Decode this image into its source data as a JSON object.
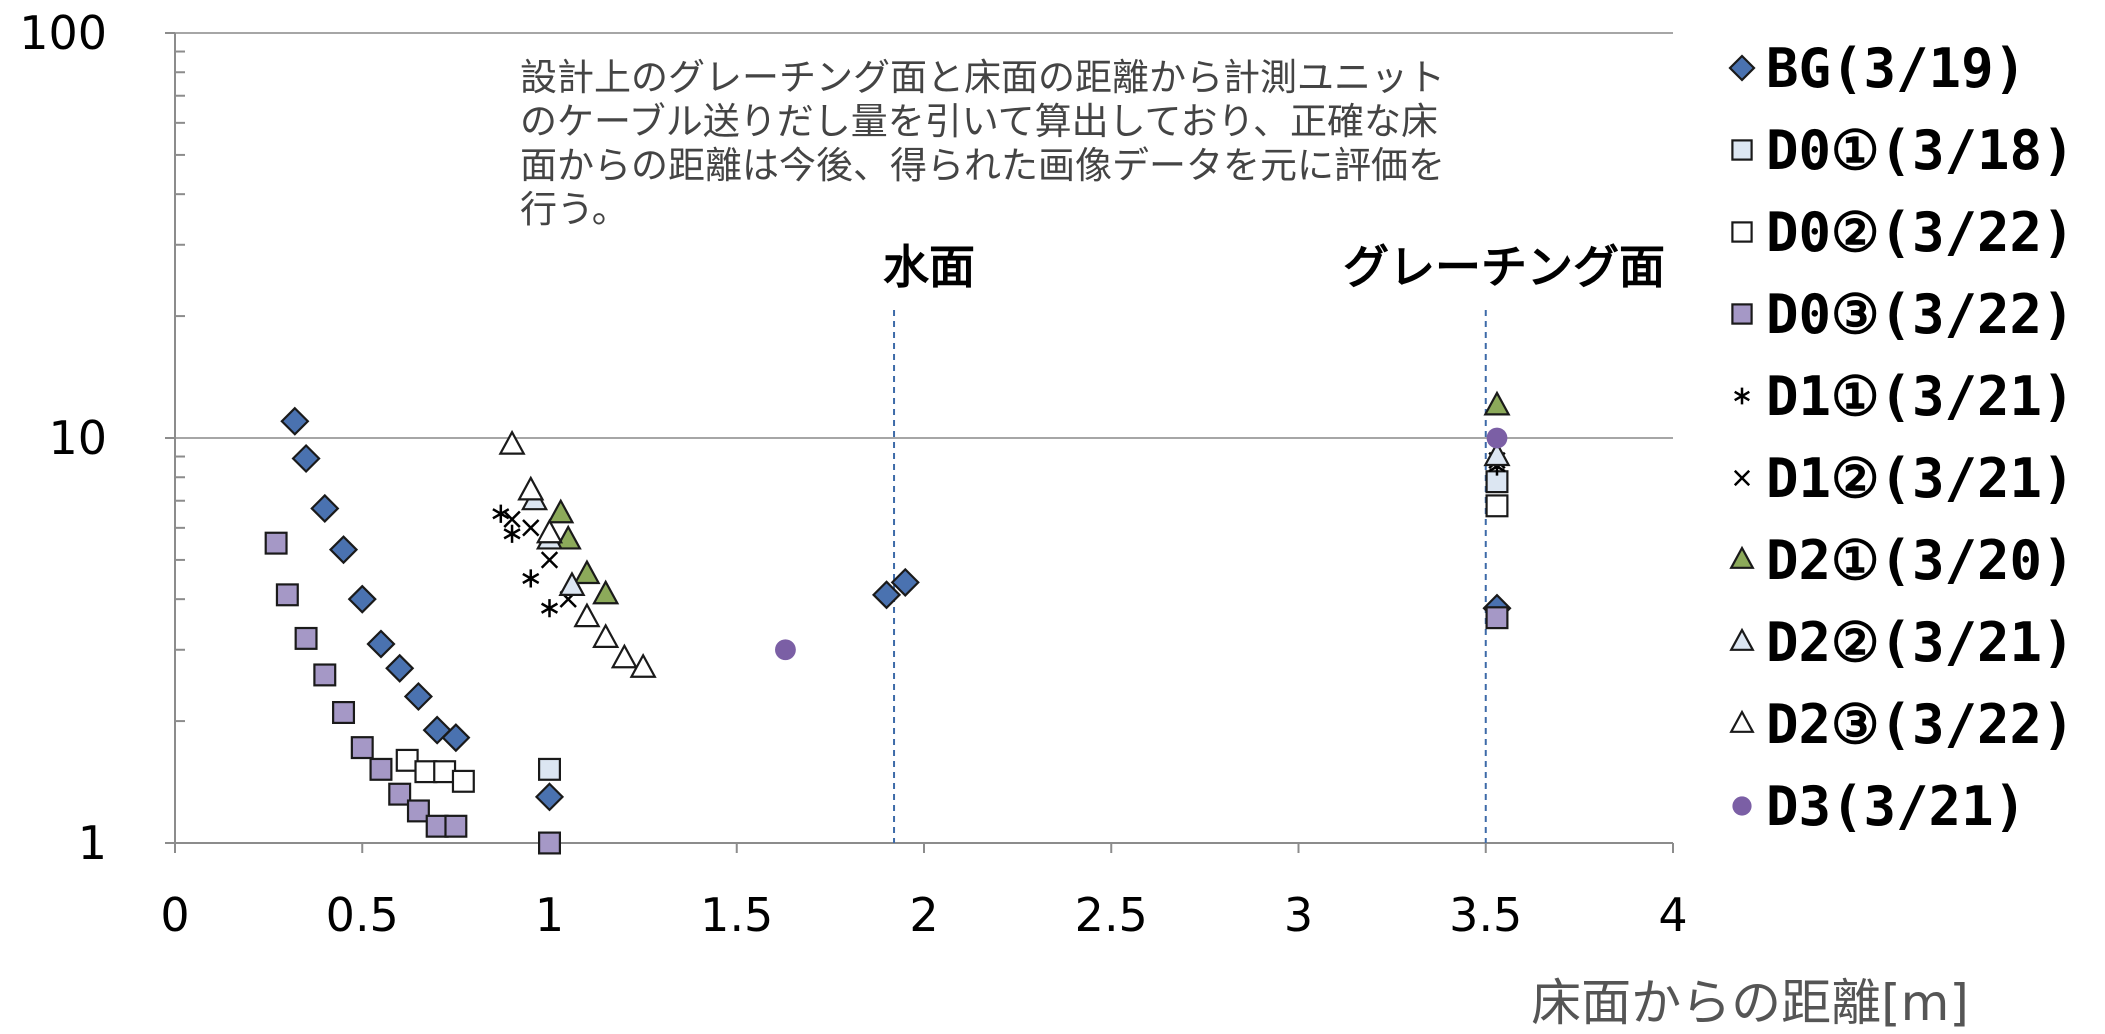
{
  "chart_data": {
    "type": "scatter",
    "xlabel": "床面からの距離[m]",
    "ylabel": "",
    "xlim": [
      0,
      4
    ],
    "ylim": [
      1,
      100
    ],
    "yscale": "log",
    "grid": "horizontal at decades",
    "legend_position": "right",
    "x_ticks": [
      "0",
      "0.5",
      "1",
      "1.5",
      "2",
      "2.5",
      "3",
      "3.5",
      "4"
    ],
    "y_ticks": [
      "1",
      "10",
      "100"
    ],
    "note_lines": [
      "設計上のグレーチング面と床面の距離から計測ユニット",
      "のケーブル送りだし量を引いて算出しており、正確な床",
      "面からの距離は今後、得られた画像データを元に評価を",
      "行う。"
    ],
    "reference_lines": [
      {
        "label": "水面",
        "x": 1.92
      },
      {
        "label": "グレーチング面",
        "x": 3.5
      }
    ],
    "series": [
      {
        "name": "BG(3/19)",
        "marker": "diamond",
        "color": "#4a72b0",
        "points": [
          [
            0.32,
            11.0
          ],
          [
            0.35,
            8.9
          ],
          [
            0.4,
            6.7
          ],
          [
            0.45,
            5.3
          ],
          [
            0.5,
            4.0
          ],
          [
            0.55,
            3.1
          ],
          [
            0.6,
            2.7
          ],
          [
            0.65,
            2.3
          ],
          [
            0.7,
            1.9
          ],
          [
            0.75,
            1.82
          ],
          [
            1.0,
            1.3
          ],
          [
            1.9,
            4.1
          ],
          [
            1.95,
            4.4
          ],
          [
            3.53,
            3.8
          ]
        ]
      },
      {
        "name": "D0①(3/18)",
        "marker": "square",
        "color": "#dce6f2",
        "points": [
          [
            1.0,
            1.52
          ],
          [
            3.53,
            7.8
          ]
        ]
      },
      {
        "name": "D0②(3/22)",
        "marker": "square",
        "color": "#ffffff",
        "points": [
          [
            0.62,
            1.6
          ],
          [
            0.67,
            1.5
          ],
          [
            0.72,
            1.5
          ],
          [
            0.77,
            1.42
          ],
          [
            3.53,
            6.8
          ]
        ]
      },
      {
        "name": "D0③(3/22)",
        "marker": "square",
        "color": "#a598c6",
        "points": [
          [
            0.27,
            5.5
          ],
          [
            0.3,
            4.1
          ],
          [
            0.35,
            3.2
          ],
          [
            0.4,
            2.6
          ],
          [
            0.45,
            2.1
          ],
          [
            0.5,
            1.72
          ],
          [
            0.55,
            1.52
          ],
          [
            0.6,
            1.32
          ],
          [
            0.65,
            1.2
          ],
          [
            0.7,
            1.1
          ],
          [
            0.75,
            1.1
          ],
          [
            1.0,
            1.0
          ],
          [
            3.53,
            3.6
          ]
        ]
      },
      {
        "name": "D1①(3/21)",
        "marker": "asterisk",
        "color": "#000000",
        "points": [
          [
            0.87,
            6.5
          ],
          [
            0.9,
            5.8
          ],
          [
            0.95,
            4.5
          ],
          [
            1.0,
            3.8
          ],
          [
            3.53,
            8.5
          ]
        ]
      },
      {
        "name": "D1②(3/21)",
        "marker": "x",
        "color": "#000000",
        "points": [
          [
            0.9,
            6.3
          ],
          [
            0.95,
            6.0
          ],
          [
            1.0,
            5.0
          ],
          [
            1.05,
            4.0
          ],
          [
            3.53,
            8.8
          ]
        ]
      },
      {
        "name": "D2①(3/20)",
        "marker": "triangle",
        "color": "#8caa5a",
        "points": [
          [
            1.03,
            6.5
          ],
          [
            1.05,
            5.6
          ],
          [
            1.1,
            4.6
          ],
          [
            1.15,
            4.1
          ],
          [
            3.53,
            12.0
          ]
        ]
      },
      {
        "name": "D2②(3/21)",
        "marker": "triangle",
        "color": "#dce6f2",
        "points": [
          [
            0.96,
            7.0
          ],
          [
            1.0,
            5.6
          ],
          [
            1.06,
            4.3
          ],
          [
            3.53,
            9.0
          ]
        ]
      },
      {
        "name": "D2③(3/22)",
        "marker": "triangle",
        "color": "#ffffff",
        "points": [
          [
            0.9,
            9.6
          ],
          [
            0.95,
            7.4
          ],
          [
            1.0,
            5.8
          ],
          [
            1.1,
            3.6
          ],
          [
            1.15,
            3.2
          ],
          [
            1.2,
            2.85
          ],
          [
            1.25,
            2.7
          ]
        ]
      },
      {
        "name": "D3(3/21)",
        "marker": "circle",
        "color": "#7b5fa5",
        "points": [
          [
            1.63,
            3.0
          ],
          [
            3.53,
            10.0
          ]
        ]
      }
    ]
  }
}
